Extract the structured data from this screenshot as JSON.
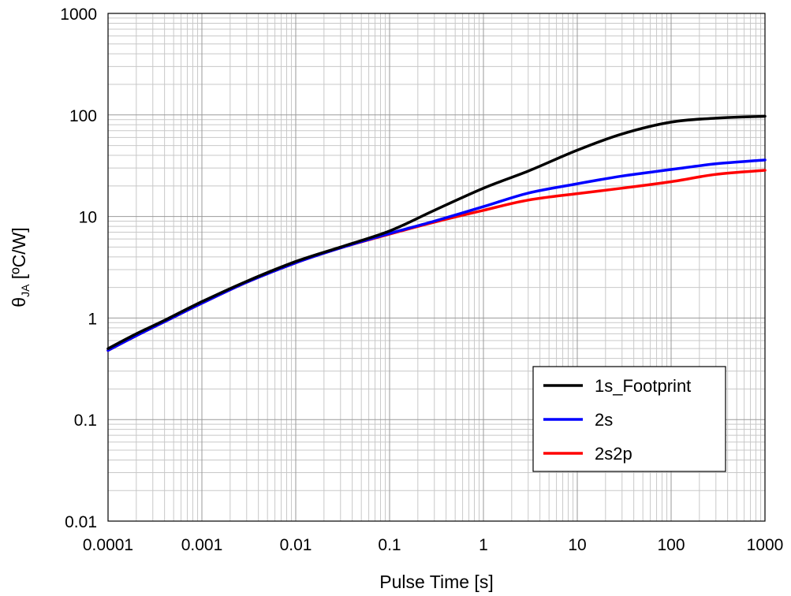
{
  "chart_data": {
    "type": "line",
    "x_scale": "log",
    "y_scale": "log",
    "xlim": [
      0.0001,
      1000
    ],
    "ylim": [
      0.01,
      1000
    ],
    "grid": true,
    "legend_position": "bottom-right",
    "xlabel": "Pulse Time [s]",
    "ylabel_main": "θ",
    "ylabel_sub": "JA",
    "ylabel_rest": " [ºC/W]",
    "x_tick_labels": [
      "0.0001",
      "0.001",
      "0.01",
      "0.1",
      "1",
      "10",
      "100",
      "1000"
    ],
    "y_tick_labels": [
      "0.01",
      "0.1",
      "1",
      "10",
      "100",
      "1000"
    ],
    "series": [
      {
        "name": "1s_Footprint",
        "color": "#000000",
        "x": [
          0.0001,
          0.0002,
          0.0004,
          0.001,
          0.003,
          0.01,
          0.03,
          0.1,
          0.3,
          1,
          3,
          10,
          30,
          100,
          300,
          1000
        ],
        "y": [
          0.5,
          0.7,
          0.95,
          1.45,
          2.3,
          3.6,
          5.0,
          7.2,
          11.5,
          19,
          28,
          45,
          65,
          85,
          93,
          97
        ]
      },
      {
        "name": "2s",
        "color": "#0000ff",
        "x": [
          0.0001,
          0.0002,
          0.0004,
          0.001,
          0.003,
          0.01,
          0.03,
          0.1,
          0.3,
          1,
          3,
          10,
          30,
          100,
          300,
          1000
        ],
        "y": [
          0.48,
          0.67,
          0.92,
          1.4,
          2.25,
          3.5,
          4.9,
          6.8,
          9.0,
          12.5,
          17,
          21,
          25,
          29,
          33,
          36
        ]
      },
      {
        "name": "2s2p",
        "color": "#ff0000",
        "x": [
          0.0001,
          0.0002,
          0.0004,
          0.001,
          0.003,
          0.01,
          0.03,
          0.1,
          0.3,
          1,
          3,
          10,
          30,
          100,
          300,
          1000
        ],
        "y": [
          0.48,
          0.67,
          0.92,
          1.4,
          2.25,
          3.5,
          4.9,
          6.7,
          8.8,
          11.5,
          14.5,
          16.8,
          19,
          22,
          26,
          28.5
        ]
      }
    ]
  }
}
